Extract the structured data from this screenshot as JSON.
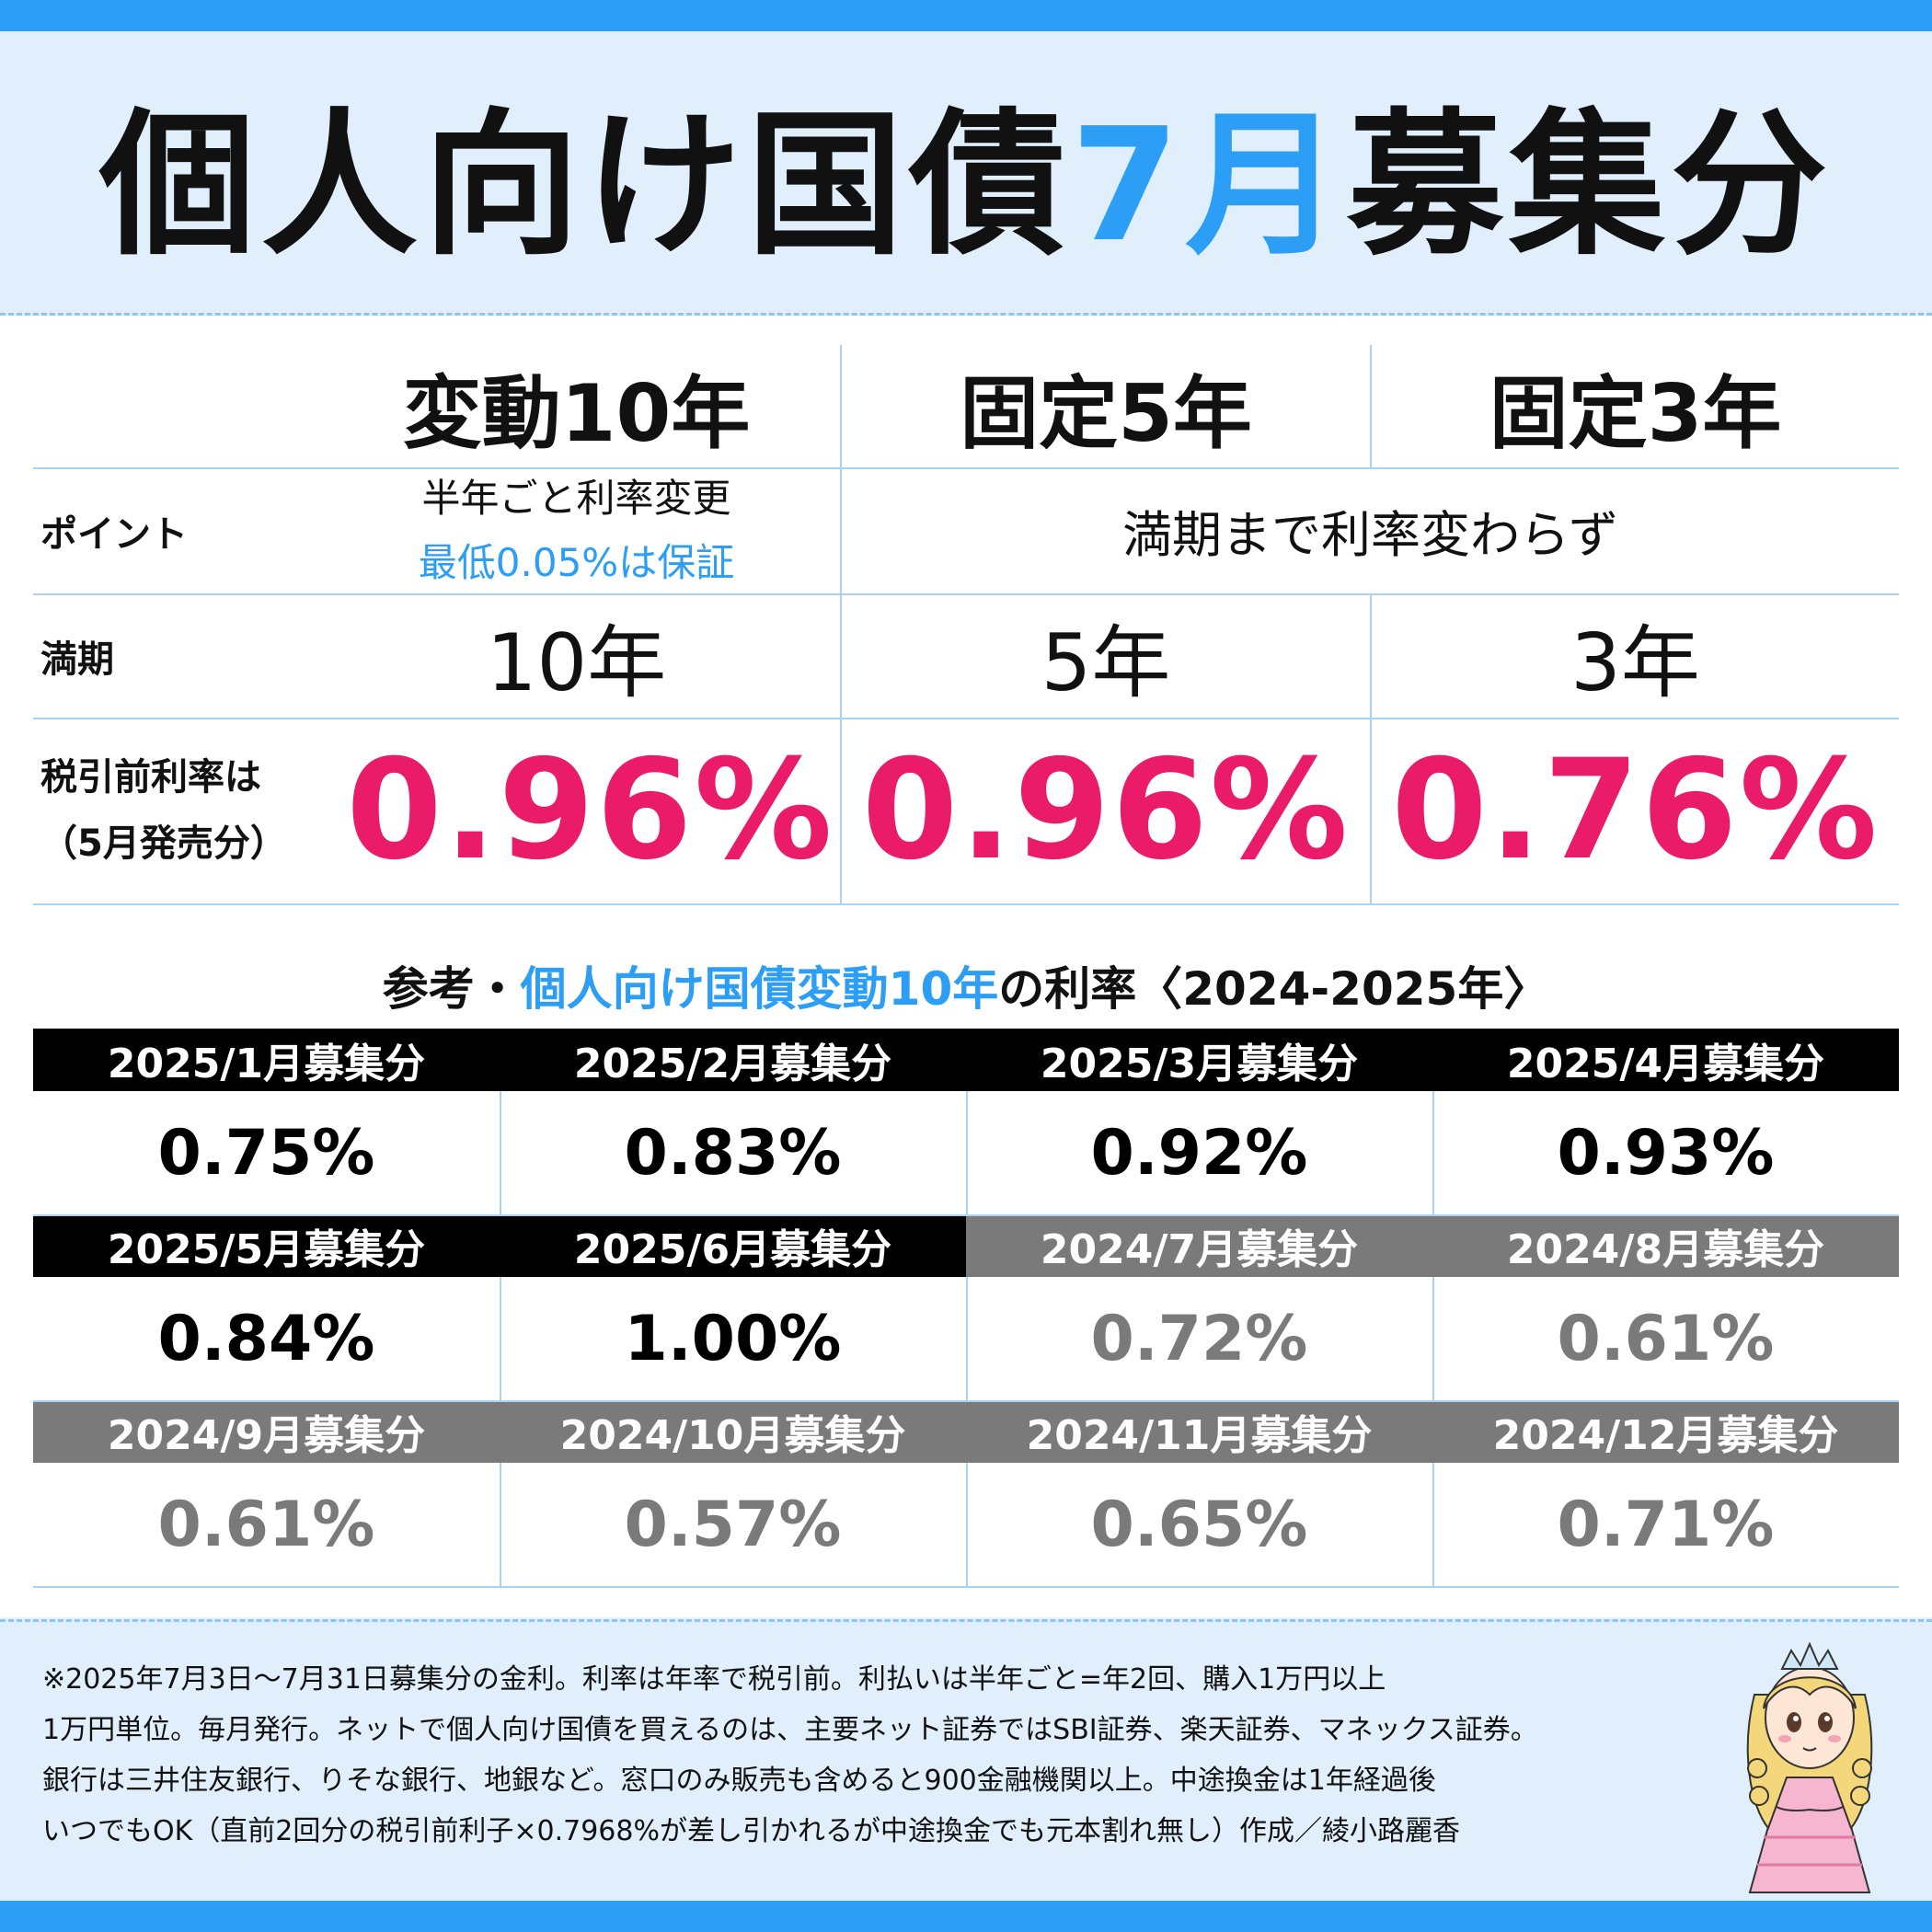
{
  "title": {
    "part1": "個人向け国債",
    "accent": "7月",
    "part2": "募集分"
  },
  "columns": {
    "c1": {
      "name": "変動10年",
      "maturity": "10年",
      "rate": "0.96%"
    },
    "c2": {
      "name": "固定5年",
      "maturity": "5年",
      "rate": "0.96%"
    },
    "c3": {
      "name": "固定3年",
      "maturity": "3年",
      "rate": "0.76%"
    }
  },
  "rows": {
    "point_label": "ポイント",
    "maturity_label": "満期",
    "rate_label_1": "税引前利率は",
    "rate_label_2": "（5月発売分）"
  },
  "points": {
    "floating_line1": "半年ごと利率変更",
    "floating_line2": "最低0.05%は保証",
    "fixed": "満期まで利率変わらず"
  },
  "reference": {
    "title_prefix": "参考・",
    "title_blue": "個人向け国債変動10年",
    "title_suffix": "の利率〈2024-2025年〉",
    "items": [
      {
        "label": "2025/1月募集分",
        "rate": "0.75%",
        "style": "dark"
      },
      {
        "label": "2025/2月募集分",
        "rate": "0.83%",
        "style": "dark"
      },
      {
        "label": "2025/3月募集分",
        "rate": "0.92%",
        "style": "dark"
      },
      {
        "label": "2025/4月募集分",
        "rate": "0.93%",
        "style": "dark"
      },
      {
        "label": "2025/5月募集分",
        "rate": "0.84%",
        "style": "dark"
      },
      {
        "label": "2025/6月募集分",
        "rate": "1.00%",
        "style": "dark"
      },
      {
        "label": "2024/7月募集分",
        "rate": "0.72%",
        "style": "gray"
      },
      {
        "label": "2024/8月募集分",
        "rate": "0.61%",
        "style": "gray"
      },
      {
        "label": "2024/9月募集分",
        "rate": "0.61%",
        "style": "gray"
      },
      {
        "label": "2024/10月募集分",
        "rate": "0.57%",
        "style": "gray"
      },
      {
        "label": "2024/11月募集分",
        "rate": "0.65%",
        "style": "gray"
      },
      {
        "label": "2024/12月募集分",
        "rate": "0.71%",
        "style": "gray"
      }
    ]
  },
  "notes": [
    "※2025年7月3日～7月31日募集分の金利。利率は年率で税引前。利払いは半年ごと=年2回、購入1万円以上",
    "1万円単位。毎月発行。ネットで個人向け国債を買えるのは、主要ネット証券ではSBI証券、楽天証券、マネックス証券。",
    "銀行は三井住友銀行、りそな銀行、地銀など。窓口のみ販売も含めると900金融機関以上。中途換金は1年経過後",
    "いつでもOK（直前2回分の税引前利子×0.7968%が差し引かれるが中途換金でも元本割れ無し）作成／綾小路麗香"
  ],
  "colors": {
    "accent_blue": "#2d9ef5",
    "rate_pink": "#ea1c6a",
    "background": "#e0effb",
    "header_dark": "#000000",
    "header_gray": "#7a7a7a"
  },
  "mascot_icon": "princess-character-illustration"
}
